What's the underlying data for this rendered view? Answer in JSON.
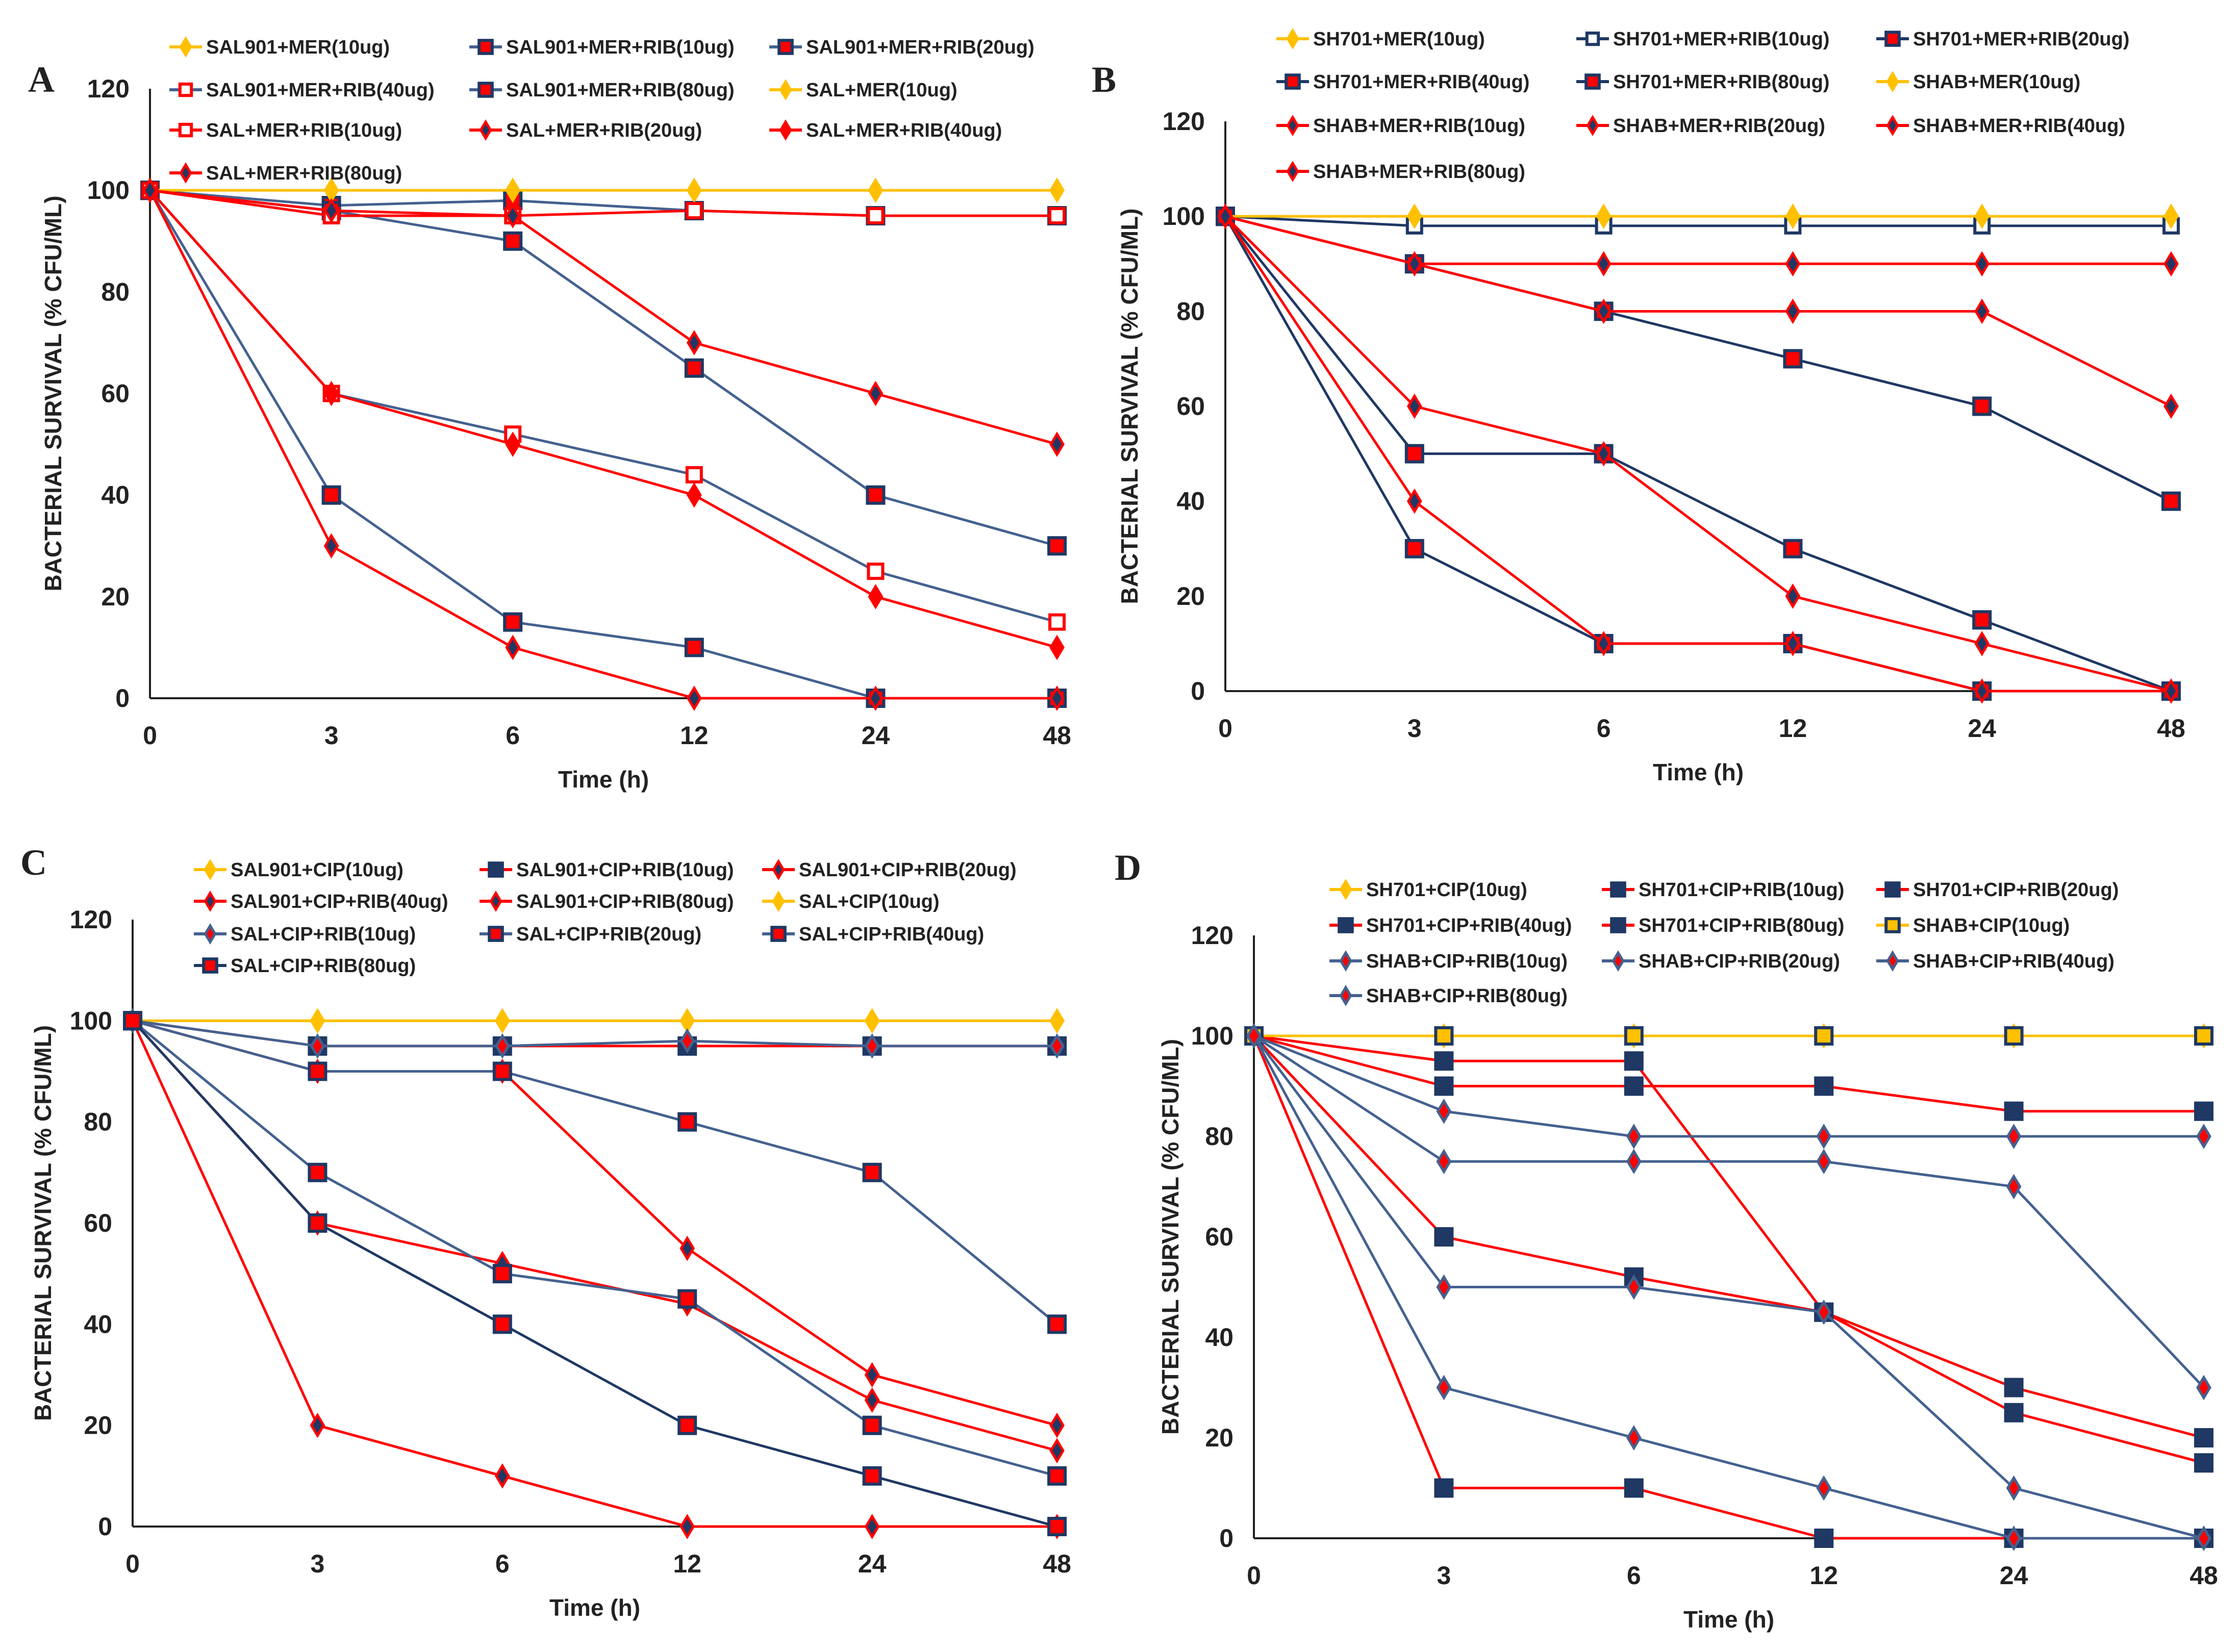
{
  "colors": {
    "yellow": "#FFC000",
    "blue": "#44618F",
    "red": "#FF0000",
    "navy": "#1F3864"
  },
  "chart_data": [
    {
      "panel": "A",
      "type": "line",
      "categories": [
        "0",
        "3",
        "6",
        "12",
        "24",
        "48"
      ],
      "ylim": [
        0,
        120
      ],
      "yticks": [
        0,
        20,
        40,
        60,
        80,
        100,
        120
      ],
      "xlabel": "Time (h)",
      "ylabel": "BACTERIAL SURVIVAL (% CFU/ML)",
      "series": [
        {
          "name": "SAL901+MER(10ug)",
          "values": [
            100,
            100,
            100,
            100,
            100,
            100
          ],
          "line": "yellow",
          "marker": "diamond",
          "fill": "yellow"
        },
        {
          "name": "SAL901+MER+RIB(10ug)",
          "values": [
            100,
            97,
            98,
            96,
            95,
            95
          ],
          "line": "blue",
          "marker": "square",
          "fill": "red"
        },
        {
          "name": "SAL901+MER+RIB(20ug)",
          "values": [
            100,
            96,
            90,
            65,
            40,
            30
          ],
          "line": "blue",
          "marker": "square",
          "fill": "red"
        },
        {
          "name": "SAL901+MER+RIB(40ug)",
          "values": [
            100,
            60,
            52,
            44,
            25,
            15
          ],
          "line": "blue",
          "marker": "open-square",
          "fill": "red"
        },
        {
          "name": "SAL901+MER+RIB(80ug)",
          "values": [
            100,
            40,
            15,
            10,
            0,
            0
          ],
          "line": "blue",
          "marker": "square",
          "fill": "red"
        },
        {
          "name": "SAL+MER(10ug)",
          "values": [
            100,
            100,
            100,
            100,
            100,
            100
          ],
          "line": "yellow",
          "marker": "diamond",
          "fill": "yellow"
        },
        {
          "name": "SAL+MER+RIB(10ug)",
          "values": [
            100,
            95,
            95,
            96,
            95,
            95
          ],
          "line": "red",
          "marker": "open-square",
          "fill": "red"
        },
        {
          "name": "SAL+MER+RIB(20ug)",
          "values": [
            100,
            96,
            95,
            70,
            60,
            50
          ],
          "line": "red",
          "marker": "diamond",
          "fill": "navy"
        },
        {
          "name": "SAL+MER+RIB(40ug)",
          "values": [
            100,
            60,
            50,
            40,
            20,
            10
          ],
          "line": "red",
          "marker": "diamond",
          "fill": "red"
        },
        {
          "name": "SAL+MER+RIB(80ug)",
          "values": [
            100,
            30,
            10,
            0,
            0,
            0
          ],
          "line": "red",
          "marker": "diamond",
          "fill": "navy"
        }
      ]
    },
    {
      "panel": "B",
      "type": "line",
      "categories": [
        "0",
        "3",
        "6",
        "12",
        "24",
        "48"
      ],
      "ylim": [
        0,
        120
      ],
      "yticks": [
        0,
        20,
        40,
        60,
        80,
        100,
        120
      ],
      "xlabel": "Time (h)",
      "ylabel": "BACTERIAL SURVIVAL (% CFU/ML)",
      "series": [
        {
          "name": "SH701+MER(10ug)",
          "values": [
            100,
            100,
            100,
            100,
            100,
            100
          ],
          "line": "yellow",
          "marker": "diamond",
          "fill": "yellow"
        },
        {
          "name": "SH701+MER+RIB(10ug)",
          "values": [
            100,
            98,
            98,
            98,
            98,
            98
          ],
          "line": "navy",
          "marker": "open-square",
          "fill": "navy"
        },
        {
          "name": "SH701+MER+RIB(20ug)",
          "values": [
            100,
            90,
            80,
            70,
            60,
            40
          ],
          "line": "navy",
          "marker": "square",
          "fill": "red"
        },
        {
          "name": "SH701+MER+RIB(40ug)",
          "values": [
            100,
            50,
            50,
            30,
            15,
            0
          ],
          "line": "navy",
          "marker": "square",
          "fill": "red"
        },
        {
          "name": "SH701+MER+RIB(80ug)",
          "values": [
            100,
            30,
            10,
            10,
            0,
            0
          ],
          "line": "navy",
          "marker": "square",
          "fill": "red"
        },
        {
          "name": "SHAB+MER(10ug)",
          "values": [
            100,
            100,
            100,
            100,
            100,
            100
          ],
          "line": "yellow",
          "marker": "diamond",
          "fill": "yellow"
        },
        {
          "name": "SHAB+MER+RIB(10ug)",
          "values": [
            100,
            90,
            90,
            90,
            90,
            90
          ],
          "line": "red",
          "marker": "diamond",
          "fill": "navy"
        },
        {
          "name": "SHAB+MER+RIB(20ug)",
          "values": [
            100,
            90,
            80,
            80,
            80,
            60
          ],
          "line": "red",
          "marker": "diamond",
          "fill": "navy"
        },
        {
          "name": "SHAB+MER+RIB(40ug)",
          "values": [
            100,
            60,
            50,
            20,
            10,
            0
          ],
          "line": "red",
          "marker": "diamond",
          "fill": "navy"
        },
        {
          "name": "SHAB+MER+RIB(80ug)",
          "values": [
            100,
            40,
            10,
            10,
            0,
            0
          ],
          "line": "red",
          "marker": "diamond",
          "fill": "navy"
        }
      ]
    },
    {
      "panel": "C",
      "type": "line",
      "categories": [
        "0",
        "3",
        "6",
        "12",
        "24",
        "48"
      ],
      "ylim": [
        0,
        120
      ],
      "yticks": [
        0,
        20,
        40,
        60,
        80,
        100,
        120
      ],
      "xlabel": "Time (h)",
      "ylabel": "BACTERIAL SURVIVAL (% CFU/ML)",
      "series": [
        {
          "name": "SAL901+CIP(10ug)",
          "values": [
            100,
            100,
            100,
            100,
            100,
            100
          ],
          "line": "yellow",
          "marker": "diamond",
          "fill": "yellow"
        },
        {
          "name": "SAL901+CIP+RIB(10ug)",
          "values": [
            100,
            95,
            95,
            95,
            95,
            95
          ],
          "line": "red",
          "marker": "square",
          "fill": "navy"
        },
        {
          "name": "SAL901+CIP+RIB(20ug)",
          "values": [
            100,
            90,
            90,
            55,
            30,
            20
          ],
          "line": "red",
          "marker": "diamond",
          "fill": "navy"
        },
        {
          "name": "SAL901+CIP+RIB(40ug)",
          "values": [
            100,
            60,
            52,
            44,
            25,
            15
          ],
          "line": "red",
          "marker": "diamond",
          "fill": "navy"
        },
        {
          "name": "SAL901+CIP+RIB(80ug)",
          "values": [
            100,
            20,
            10,
            0,
            0,
            0
          ],
          "line": "red",
          "marker": "diamond",
          "fill": "navy"
        },
        {
          "name": "SAL+CIP(10ug)",
          "values": [
            100,
            100,
            100,
            100,
            100,
            100
          ],
          "line": "yellow",
          "marker": "diamond",
          "fill": "yellow"
        },
        {
          "name": "SAL+CIP+RIB(10ug)",
          "values": [
            100,
            95,
            95,
            96,
            95,
            95
          ],
          "line": "blue",
          "marker": "diamond",
          "fill": "red"
        },
        {
          "name": "SAL+CIP+RIB(20ug)",
          "values": [
            100,
            90,
            90,
            80,
            70,
            40
          ],
          "line": "blue",
          "marker": "square",
          "fill": "red"
        },
        {
          "name": "SAL+CIP+RIB(40ug)",
          "values": [
            100,
            70,
            50,
            45,
            20,
            10
          ],
          "line": "blue",
          "marker": "square",
          "fill": "red"
        },
        {
          "name": "SAL+CIP+RIB(80ug)",
          "values": [
            100,
            60,
            40,
            20,
            10,
            0
          ],
          "line": "navy",
          "marker": "square",
          "fill": "red"
        }
      ]
    },
    {
      "panel": "D",
      "type": "line",
      "categories": [
        "0",
        "3",
        "6",
        "12",
        "24",
        "48"
      ],
      "ylim": [
        0,
        120
      ],
      "yticks": [
        0,
        20,
        40,
        60,
        80,
        100,
        120
      ],
      "xlabel": "Time (h)",
      "ylabel": "BACTERIAL SURVIVAL (% CFU/ML)",
      "series": [
        {
          "name": "SH701+CIP(10ug)",
          "values": [
            100,
            100,
            100,
            100,
            100,
            100
          ],
          "line": "yellow",
          "marker": "diamond",
          "fill": "yellow"
        },
        {
          "name": "SH701+CIP+RIB(10ug)",
          "values": [
            100,
            95,
            95,
            45,
            30,
            20
          ],
          "line": "red",
          "marker": "square",
          "fill": "navy"
        },
        {
          "name": "SH701+CIP+RIB(20ug)",
          "values": [
            100,
            90,
            90,
            90,
            85,
            85
          ],
          "line": "red",
          "marker": "square",
          "fill": "navy"
        },
        {
          "name": "SH701+CIP+RIB(40ug)",
          "values": [
            100,
            60,
            52,
            45,
            25,
            15
          ],
          "line": "red",
          "marker": "square",
          "fill": "navy"
        },
        {
          "name": "SH701+CIP+RIB(80ug)",
          "values": [
            100,
            10,
            10,
            0,
            0,
            0
          ],
          "line": "red",
          "marker": "square",
          "fill": "navy"
        },
        {
          "name": "SHAB+CIP(10ug)",
          "values": [
            100,
            100,
            100,
            100,
            100,
            100
          ],
          "line": "yellow",
          "marker": "square",
          "fill": "yellow"
        },
        {
          "name": "SHAB+CIP+RIB(10ug)",
          "values": [
            100,
            85,
            80,
            80,
            80,
            80
          ],
          "line": "blue",
          "marker": "diamond",
          "fill": "red"
        },
        {
          "name": "SHAB+CIP+RIB(20ug)",
          "values": [
            100,
            75,
            75,
            75,
            70,
            30
          ],
          "line": "blue",
          "marker": "diamond",
          "fill": "red"
        },
        {
          "name": "SHAB+CIP+RIB(40ug)",
          "values": [
            100,
            50,
            50,
            45,
            10,
            0
          ],
          "line": "blue",
          "marker": "diamond",
          "fill": "red"
        },
        {
          "name": "SHAB+CIP+RIB(80ug)",
          "values": [
            100,
            30,
            20,
            10,
            0,
            0
          ],
          "line": "blue",
          "marker": "diamond",
          "fill": "red"
        }
      ]
    }
  ]
}
